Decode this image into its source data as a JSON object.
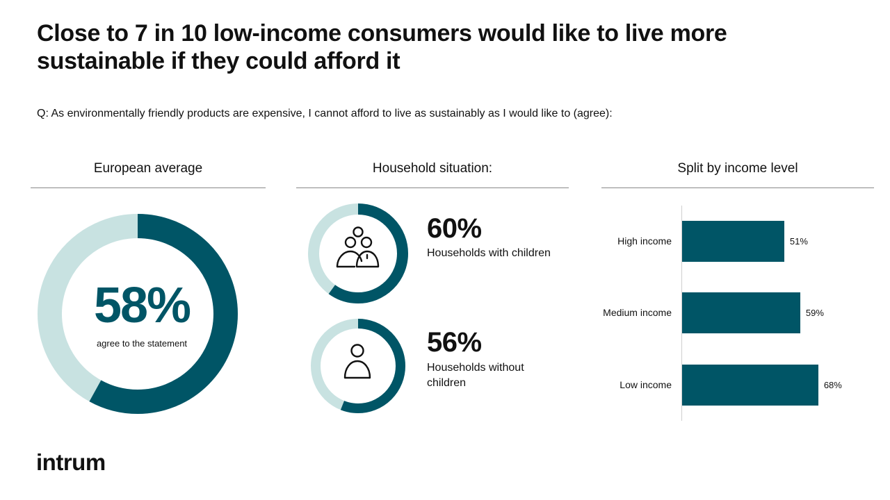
{
  "title": "Close to 7 in 10 low-income consumers would like to live more sustainable if they could afford it",
  "question": "Q: As environmentally friendly products are expensive, I cannot afford to live as sustainably as I would like to (agree):",
  "brand": "intrum",
  "colors": {
    "primary": "#005566",
    "track": "#c8e2e1"
  },
  "chart_data": [
    {
      "type": "pie",
      "title": "European average",
      "values": [
        58,
        42
      ],
      "value_label": "58%",
      "caption": "agree to the statement"
    },
    {
      "type": "pie",
      "title": "Household situation:",
      "rings": [
        {
          "label": "Households with children",
          "value": 60,
          "value_label": "60%",
          "icon": "family-icon"
        },
        {
          "label": "Households without children",
          "value": 56,
          "value_label": "56%",
          "icon": "person-icon"
        }
      ]
    },
    {
      "type": "bar",
      "orientation": "horizontal",
      "title": "Split by income level",
      "categories": [
        "High income",
        "Medium income",
        "Low income"
      ],
      "values": [
        51,
        59,
        68
      ],
      "value_labels": [
        "51%",
        "59%",
        "68%"
      ],
      "xlim": [
        0,
        100
      ]
    }
  ]
}
